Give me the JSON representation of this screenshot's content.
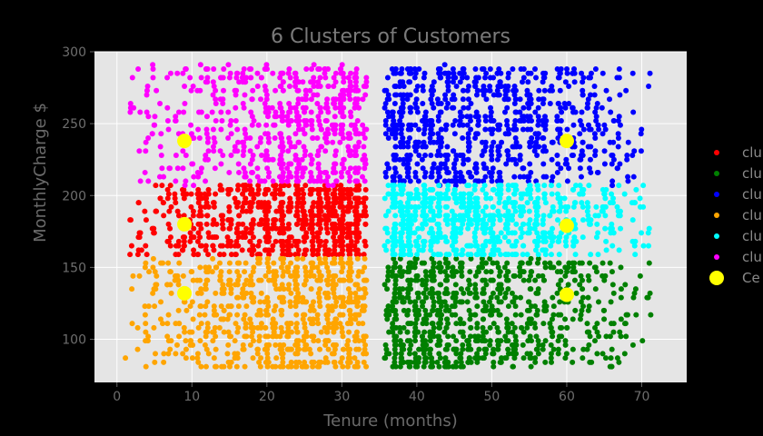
{
  "chart_data": {
    "type": "scatter",
    "title": "6 Clusters of Customers",
    "xlabel": "Tenure (months)",
    "ylabel": "MonthlyCharge $",
    "xlim": [
      -3,
      76
    ],
    "ylim": [
      70,
      300
    ],
    "xticks": [
      0,
      10,
      20,
      30,
      40,
      50,
      60,
      70
    ],
    "yticks": [
      100,
      150,
      200,
      250,
      300
    ],
    "grid": true,
    "background": "#e5e5e5",
    "legend_position": "right",
    "series": [
      {
        "name": "clu",
        "color": "#ff0000",
        "region": {
          "x": [
            1,
            33
          ],
          "y": [
            158,
            208
          ]
        },
        "density": "decreasing-right",
        "count": 750
      },
      {
        "name": "clu",
        "color": "#008000",
        "region": {
          "x": [
            36,
            72
          ],
          "y": [
            80,
            156
          ]
        },
        "density": "increasing-right",
        "count": 850
      },
      {
        "name": "clu",
        "color": "#0000ff",
        "region": {
          "x": [
            36,
            72
          ],
          "y": [
            208,
            290
          ]
        },
        "density": "increasing-right",
        "count": 800
      },
      {
        "name": "clu",
        "color": "#ffa500",
        "region": {
          "x": [
            1,
            33
          ],
          "y": [
            80,
            156
          ]
        },
        "density": "decreasing-right",
        "count": 750
      },
      {
        "name": "clu",
        "color": "#00ffff",
        "region": {
          "x": [
            36,
            72
          ],
          "y": [
            158,
            208
          ]
        },
        "density": "increasing-right",
        "count": 750
      },
      {
        "name": "clu",
        "color": "#ff00ff",
        "region": {
          "x": [
            1,
            33
          ],
          "y": [
            208,
            290
          ]
        },
        "density": "decreasing-right",
        "count": 650
      }
    ],
    "centroids": {
      "name": "Ce",
      "color": "#ffff00",
      "points": [
        {
          "x": 9,
          "y": 238
        },
        {
          "x": 9,
          "y": 180
        },
        {
          "x": 9,
          "y": 132
        },
        {
          "x": 60,
          "y": 238
        },
        {
          "x": 60,
          "y": 179
        },
        {
          "x": 60,
          "y": 131
        }
      ]
    }
  }
}
